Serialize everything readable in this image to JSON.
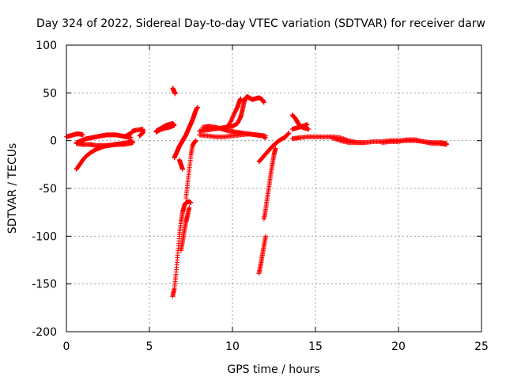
{
  "chart_data": {
    "type": "scatter",
    "title": "Day 324 of 2022, Sidereal Day-to-day VTEC variation (SDTVAR) for receiver darw",
    "xlabel": "GPS time / hours",
    "ylabel": "SDTVAR / TECUs",
    "xlim": [
      0,
      25
    ],
    "ylim": [
      -200,
      100
    ],
    "xticks": [
      0,
      5,
      10,
      15,
      20,
      25
    ],
    "yticks": [
      -200,
      -150,
      -100,
      -50,
      0,
      50,
      100
    ],
    "grid": true,
    "marker": "+",
    "marker_color": "#ff0000",
    "series": [
      {
        "points": [
          [
            0.0,
            4
          ],
          [
            0.2,
            5
          ],
          [
            0.4,
            6
          ],
          [
            0.6,
            7
          ],
          [
            0.8,
            7
          ],
          [
            1.0,
            6
          ]
        ]
      },
      {
        "points": [
          [
            0.6,
            -30
          ],
          [
            0.8,
            -25
          ],
          [
            1.0,
            -20
          ],
          [
            1.2,
            -16
          ],
          [
            1.5,
            -12
          ],
          [
            1.8,
            -9
          ],
          [
            2.1,
            -7
          ],
          [
            2.5,
            -5
          ],
          [
            2.9,
            -4
          ],
          [
            3.3,
            -3
          ],
          [
            3.7,
            -2
          ],
          [
            4.0,
            -1
          ]
        ]
      },
      {
        "points": [
          [
            0.6,
            -2
          ],
          [
            0.9,
            0
          ],
          [
            1.2,
            2
          ],
          [
            1.5,
            3
          ],
          [
            1.8,
            4
          ],
          [
            2.1,
            5
          ],
          [
            2.4,
            6
          ],
          [
            2.7,
            6
          ],
          [
            3.0,
            6
          ],
          [
            3.3,
            5
          ],
          [
            3.6,
            4
          ],
          [
            3.9,
            3
          ]
        ]
      },
      {
        "points": [
          [
            0.6,
            -3
          ],
          [
            1.0,
            -4
          ],
          [
            1.4,
            -4
          ],
          [
            1.8,
            -5
          ],
          [
            2.2,
            -5
          ],
          [
            2.6,
            -5
          ],
          [
            3.0,
            -4
          ],
          [
            3.4,
            -4
          ],
          [
            3.8,
            -3
          ],
          [
            4.0,
            -2
          ]
        ]
      },
      {
        "points": [
          [
            3.5,
            4
          ],
          [
            3.7,
            6
          ],
          [
            3.9,
            8
          ],
          [
            4.0,
            10
          ],
          [
            4.2,
            11
          ],
          [
            4.6,
            12
          ],
          [
            4.6,
            8
          ],
          [
            4.4,
            5
          ]
        ]
      },
      {
        "points": [
          [
            5.4,
            10
          ],
          [
            5.6,
            12
          ],
          [
            5.8,
            14
          ],
          [
            6.0,
            16
          ],
          [
            6.2,
            17
          ],
          [
            6.4,
            18
          ],
          [
            6.5,
            16
          ],
          [
            6.2,
            14
          ],
          [
            5.9,
            13
          ],
          [
            5.6,
            11
          ],
          [
            5.4,
            9
          ]
        ]
      },
      {
        "points": [
          [
            6.4,
            55
          ],
          [
            6.45,
            53
          ],
          [
            6.5,
            51
          ],
          [
            6.55,
            49
          ]
        ]
      },
      {
        "points": [
          [
            6.5,
            -18
          ],
          [
            6.6,
            -14
          ],
          [
            6.7,
            -10
          ],
          [
            6.8,
            -6
          ],
          [
            6.9,
            -3
          ],
          [
            7.0,
            0
          ],
          [
            7.1,
            3
          ],
          [
            7.2,
            6
          ],
          [
            7.3,
            10
          ],
          [
            7.4,
            14
          ],
          [
            7.5,
            18
          ],
          [
            7.6,
            22
          ],
          [
            7.7,
            27
          ],
          [
            7.8,
            32
          ],
          [
            7.9,
            35
          ]
        ]
      },
      {
        "points": [
          [
            6.8,
            -20
          ],
          [
            6.9,
            -25
          ],
          [
            7.0,
            -30
          ]
        ]
      },
      {
        "points": [
          [
            6.4,
            -163
          ],
          [
            6.5,
            -155
          ],
          [
            6.6,
            -140
          ],
          [
            6.7,
            -120
          ],
          [
            6.8,
            -100
          ],
          [
            6.9,
            -85
          ],
          [
            7.0,
            -75
          ],
          [
            7.1,
            -68
          ],
          [
            7.2,
            -65
          ],
          [
            7.3,
            -64
          ],
          [
            7.4,
            -64
          ],
          [
            7.5,
            -65
          ]
        ]
      },
      {
        "points": [
          [
            6.9,
            -115
          ],
          [
            7.0,
            -105
          ],
          [
            7.1,
            -95
          ],
          [
            7.2,
            -85
          ],
          [
            7.3,
            -78
          ],
          [
            7.4,
            -70
          ]
        ]
      },
      {
        "points": [
          [
            7.2,
            -60
          ],
          [
            7.3,
            -45
          ],
          [
            7.4,
            -30
          ],
          [
            7.5,
            -15
          ],
          [
            7.6,
            -5
          ],
          [
            7.7,
            -2
          ],
          [
            7.8,
            0
          ]
        ]
      },
      {
        "points": [
          [
            8.0,
            10
          ],
          [
            8.4,
            11
          ],
          [
            8.8,
            12
          ],
          [
            9.2,
            13
          ],
          [
            9.6,
            14
          ],
          [
            10.0,
            15
          ],
          [
            10.3,
            18
          ],
          [
            10.5,
            25
          ],
          [
            10.6,
            32
          ],
          [
            10.7,
            40
          ],
          [
            10.8,
            45
          ],
          [
            10.9,
            46
          ],
          [
            11.0,
            45
          ],
          [
            11.2,
            43
          ],
          [
            11.4,
            44
          ],
          [
            11.6,
            45
          ],
          [
            11.8,
            43
          ],
          [
            11.9,
            40
          ]
        ]
      },
      {
        "points": [
          [
            8.0,
            6
          ],
          [
            8.5,
            5
          ],
          [
            9.0,
            4
          ],
          [
            9.5,
            4
          ],
          [
            10.0,
            5
          ],
          [
            10.5,
            6
          ],
          [
            11.0,
            7
          ],
          [
            11.5,
            6
          ],
          [
            12.0,
            5
          ]
        ]
      },
      {
        "points": [
          [
            8.2,
            14
          ],
          [
            8.6,
            15
          ],
          [
            9.0,
            14
          ],
          [
            9.4,
            12
          ],
          [
            9.8,
            10
          ],
          [
            10.2,
            9
          ],
          [
            10.6,
            8
          ],
          [
            11.0,
            7
          ],
          [
            11.4,
            6
          ],
          [
            11.8,
            5
          ],
          [
            12.0,
            3
          ]
        ]
      },
      {
        "points": [
          [
            9.6,
            12
          ],
          [
            9.9,
            20
          ],
          [
            10.1,
            28
          ],
          [
            10.3,
            35
          ],
          [
            10.4,
            40
          ],
          [
            10.5,
            44
          ]
        ]
      },
      {
        "points": [
          [
            11.6,
            -22
          ],
          [
            11.8,
            -18
          ],
          [
            12.0,
            -14
          ],
          [
            12.2,
            -10
          ],
          [
            12.4,
            -6
          ],
          [
            12.6,
            -3
          ],
          [
            12.8,
            0
          ],
          [
            13.0,
            2
          ],
          [
            13.2,
            4
          ],
          [
            13.4,
            8
          ]
        ]
      },
      {
        "points": [
          [
            11.6,
            -139
          ],
          [
            11.7,
            -130
          ],
          [
            11.8,
            -120
          ],
          [
            11.9,
            -110
          ],
          [
            12.0,
            -100
          ]
        ]
      },
      {
        "points": [
          [
            11.9,
            -82
          ],
          [
            12.0,
            -72
          ],
          [
            12.1,
            -60
          ],
          [
            12.2,
            -48
          ],
          [
            12.3,
            -36
          ],
          [
            12.4,
            -25
          ],
          [
            12.5,
            -15
          ],
          [
            12.6,
            -8
          ]
        ]
      },
      {
        "points": [
          [
            13.6,
            27
          ],
          [
            13.7,
            25
          ],
          [
            13.8,
            23
          ],
          [
            13.9,
            20
          ],
          [
            14.0,
            17
          ],
          [
            14.2,
            14
          ],
          [
            14.4,
            13
          ],
          [
            14.6,
            12
          ]
        ]
      },
      {
        "points": [
          [
            13.6,
            12
          ],
          [
            13.8,
            13
          ],
          [
            14.0,
            14
          ],
          [
            14.2,
            15
          ],
          [
            14.4,
            16
          ],
          [
            14.5,
            17
          ]
        ]
      },
      {
        "points": [
          [
            13.6,
            2
          ],
          [
            14.0,
            3
          ],
          [
            14.5,
            4
          ],
          [
            15.0,
            4
          ],
          [
            15.5,
            4
          ],
          [
            16.0,
            4
          ],
          [
            16.5,
            3
          ],
          [
            17.0,
            0
          ],
          [
            17.5,
            -2
          ],
          [
            18.0,
            -2
          ],
          [
            18.5,
            -1
          ],
          [
            19.0,
            -1
          ],
          [
            19.5,
            0
          ],
          [
            20.0,
            0
          ],
          [
            20.5,
            0
          ],
          [
            21.0,
            0
          ],
          [
            21.5,
            -1
          ],
          [
            22.0,
            -2
          ],
          [
            22.5,
            -2
          ],
          [
            22.9,
            -3
          ]
        ]
      },
      {
        "points": [
          [
            16.0,
            3
          ],
          [
            16.5,
            0
          ],
          [
            17.0,
            -2
          ],
          [
            17.5,
            -2
          ],
          [
            18.0,
            -2
          ]
        ]
      },
      {
        "points": [
          [
            19.0,
            -2
          ],
          [
            19.5,
            -1
          ],
          [
            20.0,
            -1
          ],
          [
            20.5,
            1
          ],
          [
            21.0,
            1
          ],
          [
            21.5,
            -1
          ],
          [
            22.0,
            -3
          ],
          [
            22.5,
            -3
          ],
          [
            22.9,
            -4
          ]
        ]
      }
    ]
  }
}
